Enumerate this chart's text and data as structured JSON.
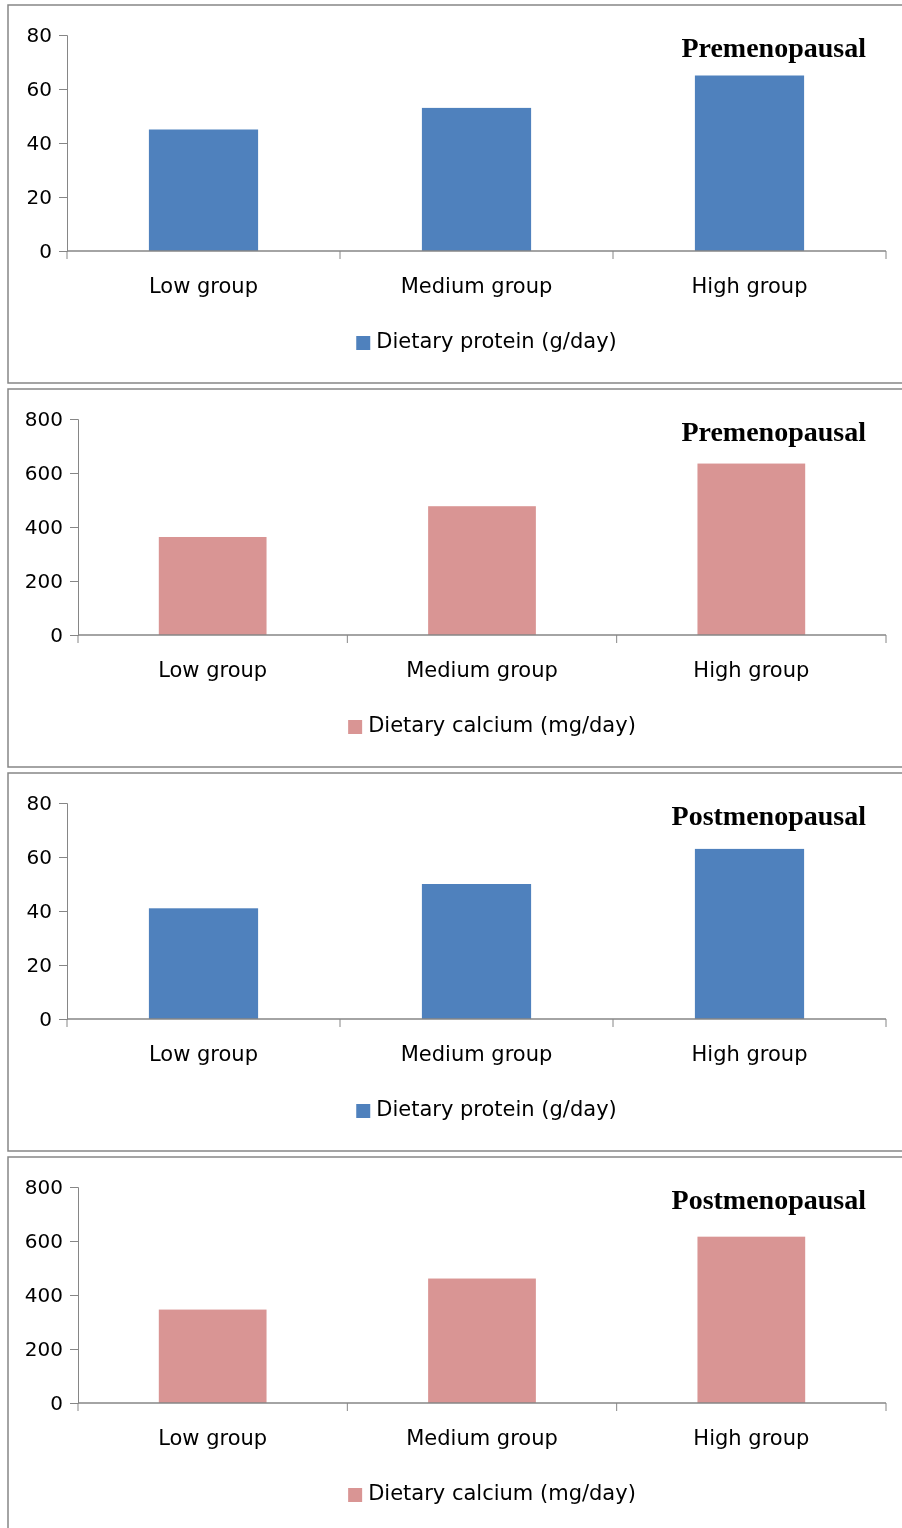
{
  "chart_data": [
    {
      "type": "bar",
      "title": "Premenopausal",
      "categories": [
        "Low group",
        "Medium group",
        "High group"
      ],
      "series": [
        {
          "name": "Dietary protein (g/day)",
          "color": "#4f81bd",
          "values": [
            45,
            53,
            65
          ]
        }
      ],
      "ylim": [
        0,
        80
      ],
      "yticks": [
        0,
        20,
        40,
        60,
        80
      ],
      "grid": false,
      "legend": "bottom"
    },
    {
      "type": "bar",
      "title": "Premenopausal",
      "categories": [
        "Low group",
        "Medium group",
        "High group"
      ],
      "series": [
        {
          "name": "Dietary calcium (mg/day)",
          "color": "#d99594",
          "values": [
            363,
            477,
            635
          ]
        }
      ],
      "ylim": [
        0,
        800
      ],
      "yticks": [
        0,
        200,
        400,
        600,
        800
      ],
      "grid": false,
      "legend": "bottom"
    },
    {
      "type": "bar",
      "title": "Postmenopausal",
      "categories": [
        "Low group",
        "Medium group",
        "High group"
      ],
      "series": [
        {
          "name": "Dietary protein (g/day)",
          "color": "#4f81bd",
          "values": [
            41,
            50,
            63
          ]
        }
      ],
      "ylim": [
        0,
        80
      ],
      "yticks": [
        0,
        20,
        40,
        60,
        80
      ],
      "grid": false,
      "legend": "bottom"
    },
    {
      "type": "bar",
      "title": "Postmenopausal",
      "categories": [
        "Low group",
        "Medium group",
        "High group"
      ],
      "series": [
        {
          "name": "Dietary calcium (mg/day)",
          "color": "#d99594",
          "values": [
            346,
            461,
            616
          ]
        }
      ],
      "ylim": [
        0,
        800
      ],
      "yticks": [
        0,
        200,
        400,
        600,
        800
      ],
      "grid": false,
      "legend": "bottom"
    }
  ]
}
